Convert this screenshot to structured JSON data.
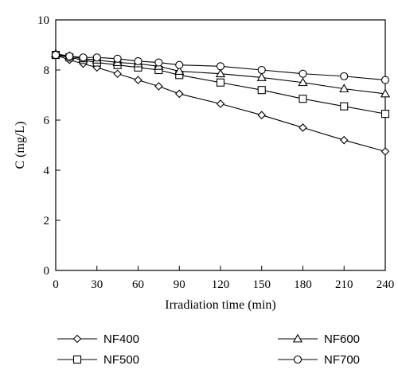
{
  "chart_data": {
    "type": "line",
    "title": "",
    "xlabel": "Irradiation time (min)",
    "ylabel": "C (mg/L)",
    "xlim": [
      0,
      240
    ],
    "ylim": [
      0,
      10
    ],
    "xticks": [
      0,
      30,
      60,
      90,
      120,
      150,
      180,
      210,
      240
    ],
    "yticks": [
      0,
      2,
      4,
      6,
      8,
      10
    ],
    "grid": false,
    "legend_position": "bottom",
    "series": [
      {
        "name": "NF400",
        "marker": "diamond",
        "x": [
          0,
          10,
          20,
          30,
          45,
          60,
          75,
          90,
          120,
          150,
          180,
          210,
          240
        ],
        "y": [
          8.6,
          8.4,
          8.25,
          8.1,
          7.85,
          7.6,
          7.35,
          7.05,
          6.65,
          6.2,
          5.7,
          5.2,
          4.75
        ]
      },
      {
        "name": "NF500",
        "marker": "square",
        "x": [
          0,
          10,
          20,
          30,
          45,
          60,
          75,
          90,
          120,
          150,
          180,
          210,
          240
        ],
        "y": [
          8.6,
          8.5,
          8.4,
          8.3,
          8.2,
          8.1,
          8.0,
          7.8,
          7.5,
          7.2,
          6.85,
          6.55,
          6.25
        ]
      },
      {
        "name": "NF600",
        "marker": "triangle",
        "x": [
          0,
          10,
          20,
          30,
          45,
          60,
          75,
          90,
          120,
          150,
          180,
          210,
          240
        ],
        "y": [
          8.65,
          8.55,
          8.45,
          8.4,
          8.3,
          8.25,
          8.15,
          7.95,
          7.85,
          7.7,
          7.5,
          7.25,
          7.05
        ]
      },
      {
        "name": "NF700",
        "marker": "circle",
        "x": [
          0,
          10,
          20,
          30,
          45,
          60,
          75,
          90,
          120,
          150,
          180,
          210,
          240
        ],
        "y": [
          8.6,
          8.55,
          8.5,
          8.5,
          8.45,
          8.35,
          8.3,
          8.2,
          8.15,
          8.0,
          7.85,
          7.75,
          7.6
        ]
      }
    ]
  }
}
